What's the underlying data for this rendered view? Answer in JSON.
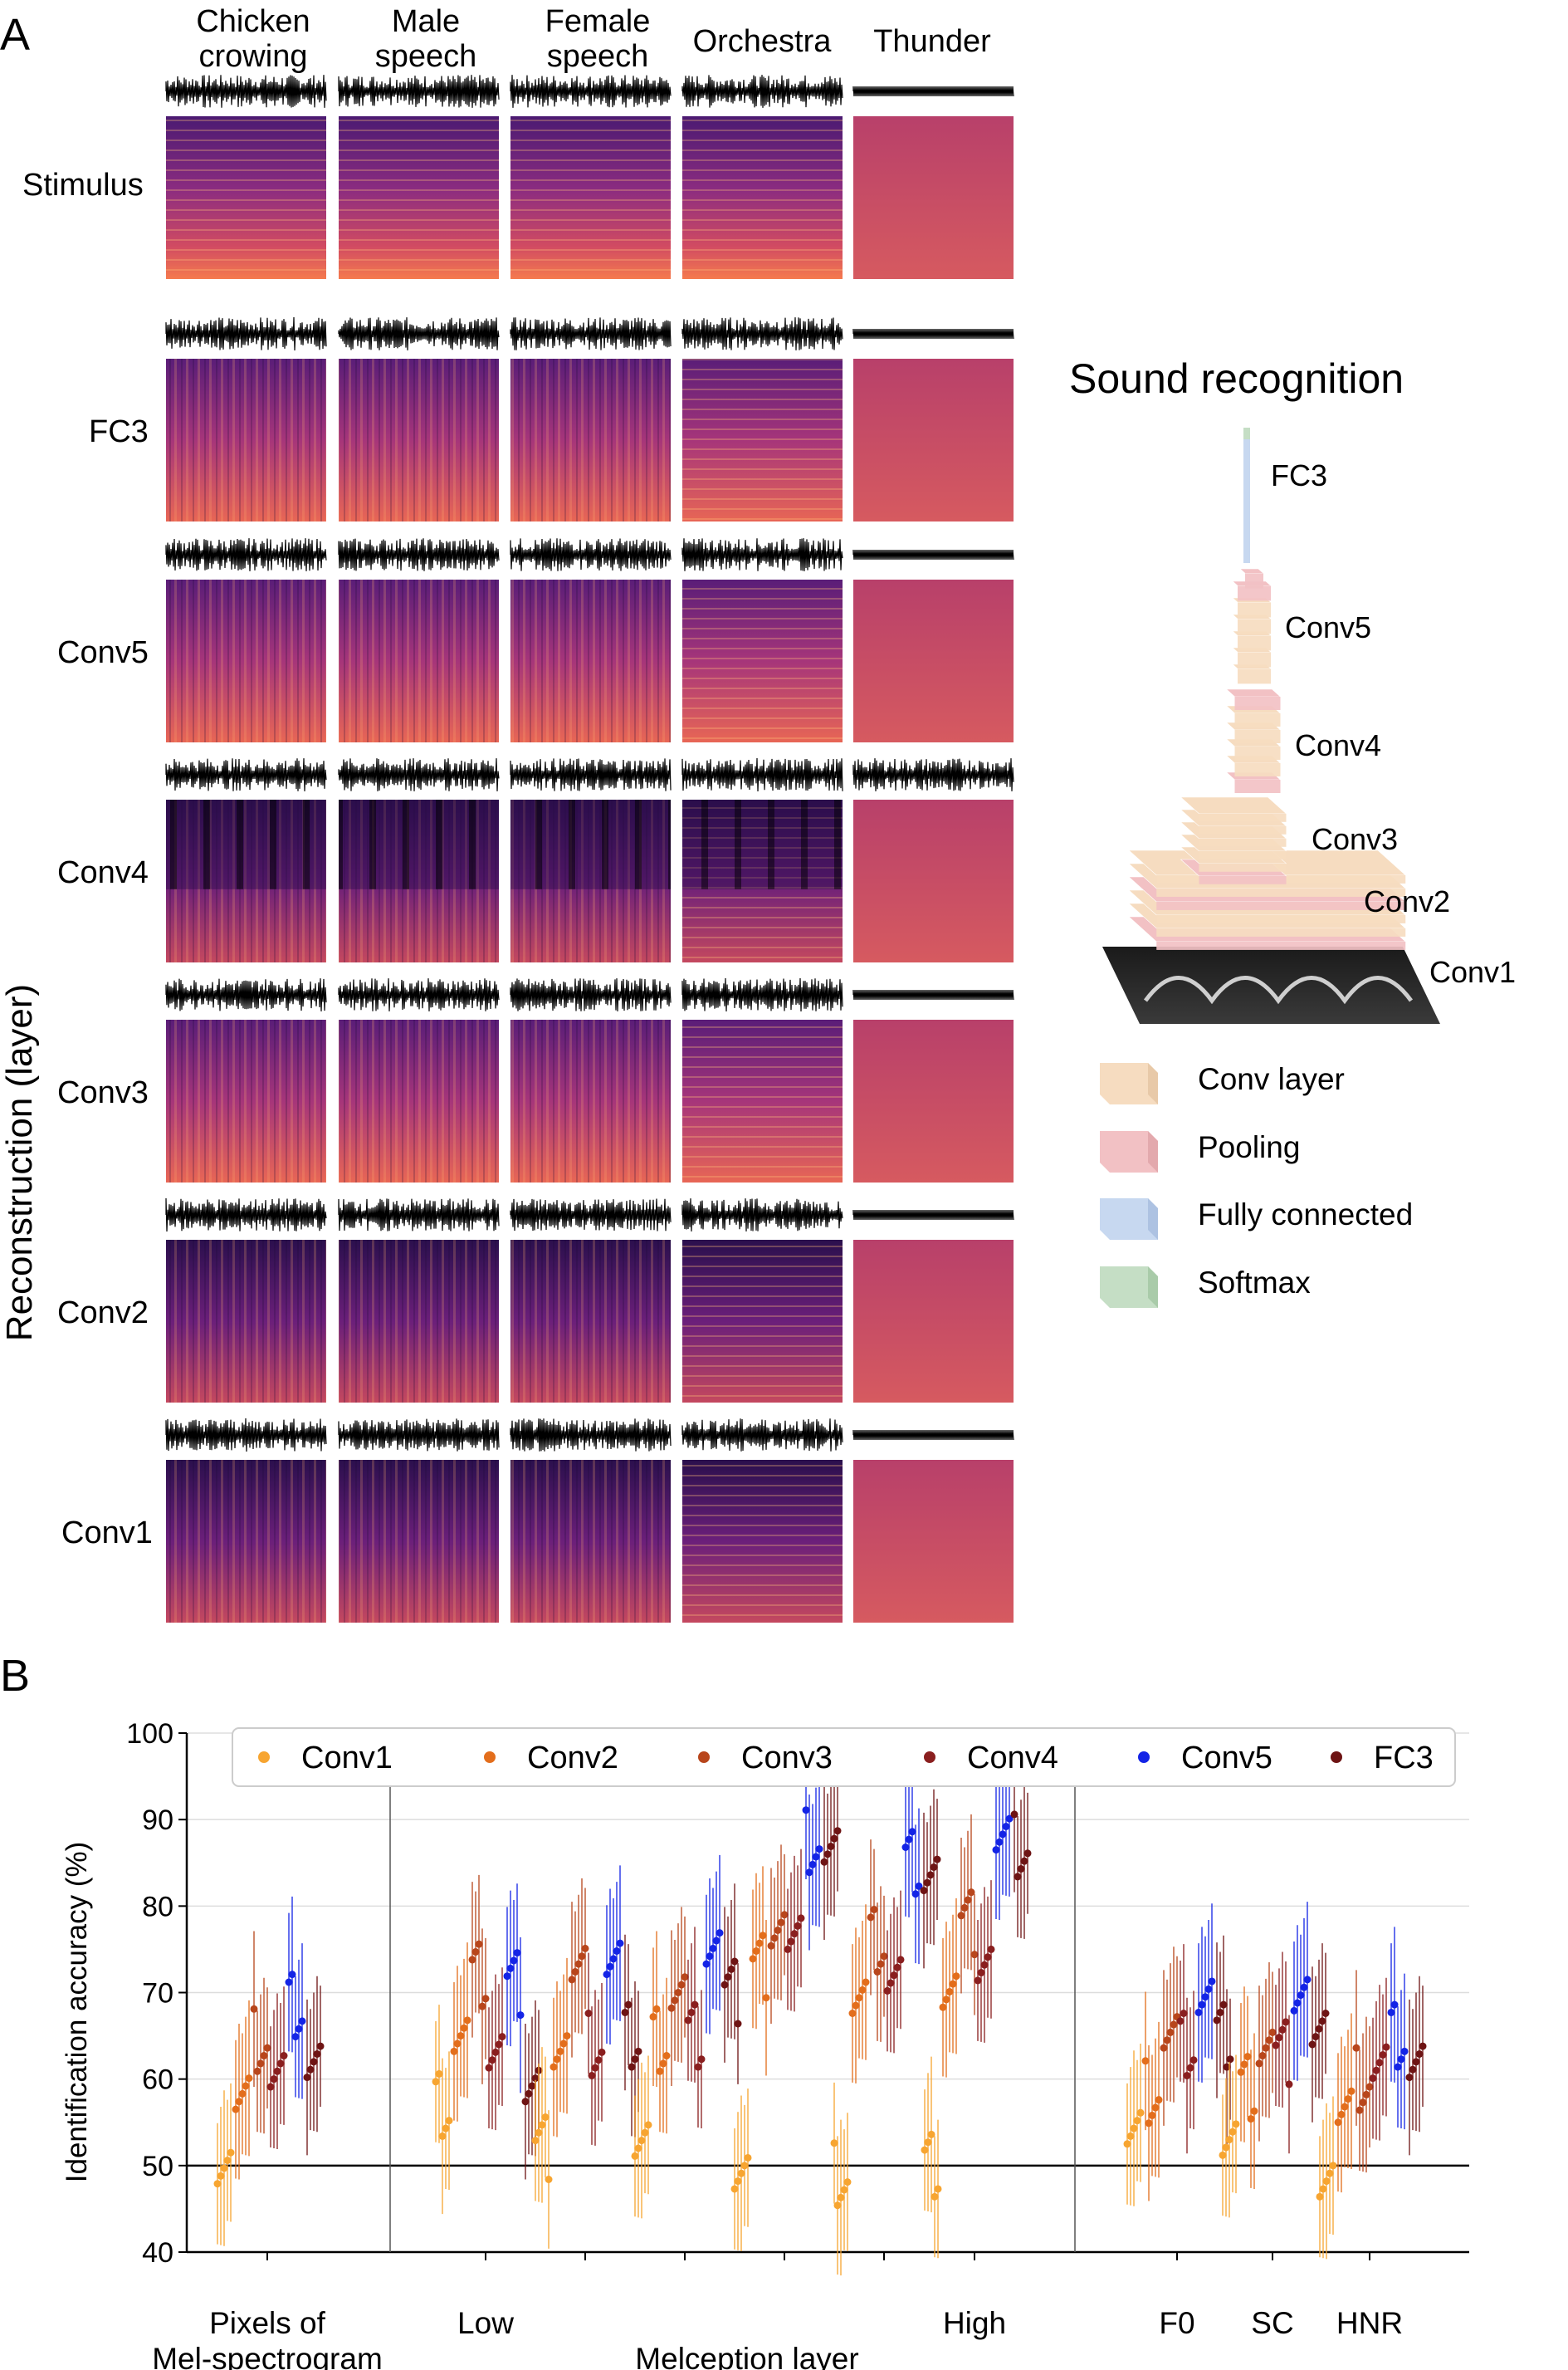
{
  "panel_a": {
    "label": "A",
    "columns": [
      {
        "line1": "Chicken",
        "line2": "crowing"
      },
      {
        "line1": "Male",
        "line2": "speech"
      },
      {
        "line1": "Female",
        "line2": "speech"
      },
      {
        "line1": "",
        "line2": "Orchestra"
      },
      {
        "line1": "",
        "line2": "Thunder"
      }
    ],
    "rows": [
      "Stimulus",
      "FC3",
      "Conv5",
      "Conv4",
      "Conv3",
      "Conv2",
      "Conv1"
    ],
    "y_axis_label": "Reconstruction (layer)",
    "network": {
      "title": "Sound recognition",
      "layer_labels": [
        "FC3",
        "Conv5",
        "Conv4",
        "Conv3",
        "Conv2",
        "Conv1"
      ],
      "colors": {
        "conv": "#f6dcc0",
        "pool": "#f2c1c4",
        "fc": "#c7d8f0",
        "softmax": "#c5dec5"
      }
    },
    "legend": [
      "Conv layer",
      "Pooling",
      "Fully connected",
      "Softmax"
    ]
  },
  "panel_b": {
    "label": "B",
    "chart_data": {
      "type": "scatter",
      "ylabel": "Identification accuracy (%)",
      "ylim": [
        40,
        100
      ],
      "yticks": [
        40,
        50,
        60,
        70,
        80,
        90,
        100
      ],
      "reference_line": 50,
      "grid": true,
      "legend_position": "top",
      "group_labels": {
        "pixels": [
          "Pixels of",
          "Mel-spectrogram"
        ],
        "melception_low": "Low",
        "melception_high": "High",
        "melception_title": "Melception layer",
        "features": [
          "F0",
          "SC",
          "HNR"
        ]
      },
      "series": [
        {
          "name": "Conv1",
          "color": "#f7a531"
        },
        {
          "name": "Conv2",
          "color": "#e36e1c"
        },
        {
          "name": "Conv3",
          "color": "#b8461c"
        },
        {
          "name": "Conv4",
          "color": "#8a1f1f"
        },
        {
          "name": "Conv5",
          "color": "#1424e6"
        },
        {
          "name": "FC3",
          "color": "#6e1414"
        }
      ],
      "groups": [
        {
          "label": "Pixels of Mel-spectrogram",
          "values": [
            51.5,
            56.5,
            64.5,
            60,
            68.5,
            62
          ]
        },
        {
          "label": "Melception layer 1 (Low)",
          "values": [
            57,
            65,
            72,
            64,
            71,
            61
          ]
        },
        {
          "label": "Melception layer 2",
          "values": [
            52,
            65,
            71.5,
            64,
            73,
            65
          ]
        },
        {
          "label": "Melception layer 3",
          "values": [
            52,
            64.5,
            70,
            65,
            76,
            70
          ]
        },
        {
          "label": "Melception layer 4",
          "values": [
            50,
            73,
            79,
            75,
            87.5,
            86
          ]
        },
        {
          "label": "Melception layer 5",
          "values": [
            49,
            68.5,
            76,
            72,
            85,
            84.5
          ]
        },
        {
          "label": "Melception layer 6 (High)",
          "values": [
            50,
            71,
            78,
            75,
            86.5,
            87
          ]
        },
        {
          "label": "F0",
          "values": [
            52.5,
            58.5,
            64.5,
            64,
            69.5,
            65
          ]
        },
        {
          "label": "SC",
          "values": [
            53,
            59,
            64.5,
            63,
            71.5,
            64
          ]
        },
        {
          "label": "HNR",
          "values": [
            50,
            55,
            60,
            61,
            65,
            62
          ]
        }
      ]
    }
  }
}
